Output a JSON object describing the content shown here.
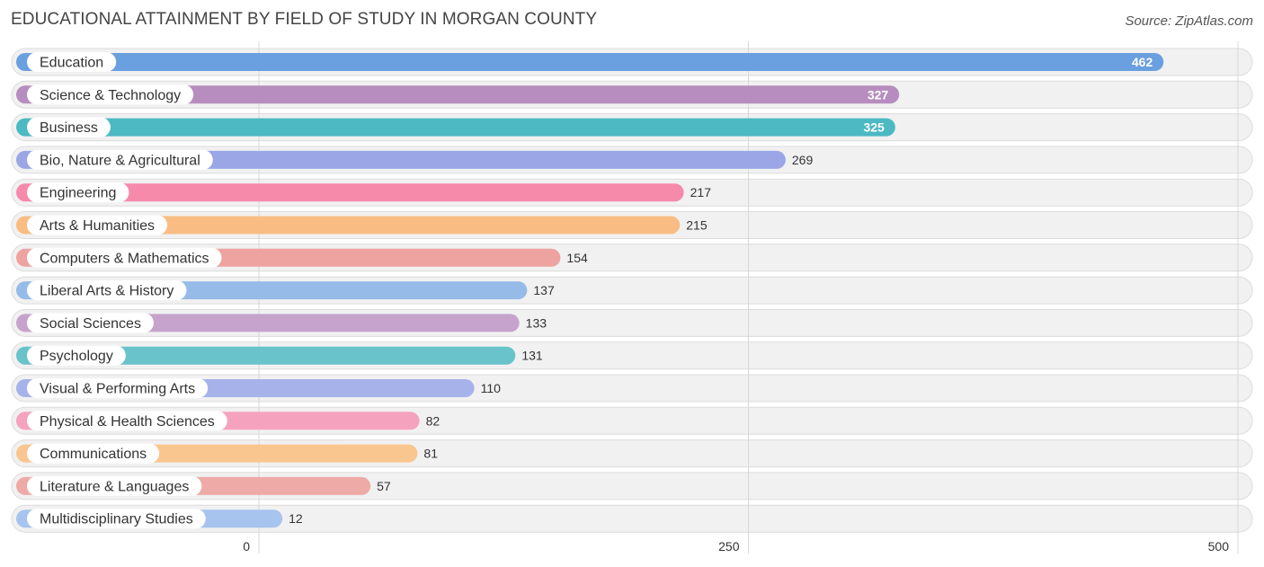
{
  "chart_data": {
    "type": "bar",
    "orientation": "horizontal",
    "title": "EDUCATIONAL ATTAINMENT BY FIELD OF STUDY IN MORGAN COUNTY",
    "source": "Source: ZipAtlas.com",
    "xlim": [
      0,
      500
    ],
    "ticks": [
      0,
      250,
      500
    ],
    "tick_labels": [
      "0",
      "250",
      "500"
    ],
    "categories": [
      "Education",
      "Science & Technology",
      "Business",
      "Bio, Nature & Agricultural",
      "Engineering",
      "Arts & Humanities",
      "Computers & Mathematics",
      "Liberal Arts & History",
      "Social Sciences",
      "Psychology",
      "Visual & Performing Arts",
      "Physical & Health Sciences",
      "Communications",
      "Literature & Languages",
      "Multidisciplinary Studies"
    ],
    "values": [
      462,
      327,
      325,
      269,
      217,
      215,
      154,
      137,
      133,
      131,
      110,
      82,
      81,
      57,
      12
    ],
    "value_labels": [
      "462",
      "327",
      "325",
      "269",
      "217",
      "215",
      "154",
      "137",
      "133",
      "131",
      "110",
      "82",
      "81",
      "57",
      "12"
    ],
    "colors": [
      "#6a9fe0",
      "#b78dbf",
      "#4cb9c3",
      "#9aa6e6",
      "#f58aab",
      "#f9bd84",
      "#eea3a0",
      "#97bbe8",
      "#c6a3cc",
      "#69c3ca",
      "#a8b2ea",
      "#f5a2bf",
      "#f9c690",
      "#eeaaa6",
      "#a6c4ee"
    ],
    "grid": true
  }
}
